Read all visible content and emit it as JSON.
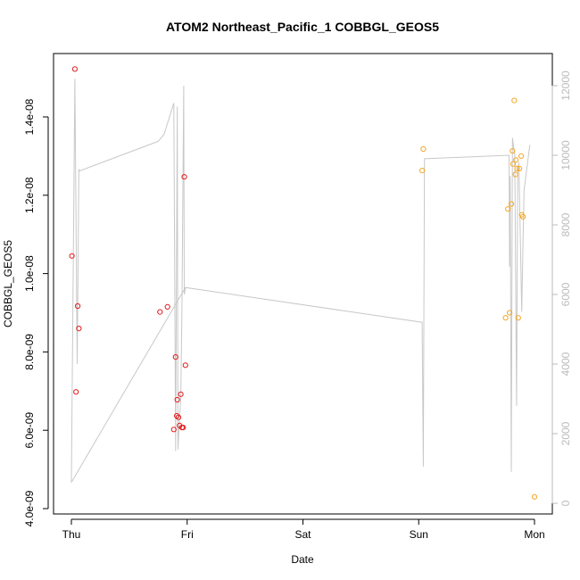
{
  "chart_data": {
    "type": "scatter",
    "title": "ATOM2 Northeast_Pacific_1 COBBGL_GEOS5",
    "xlabel": "Date",
    "ylabel": "COBBGL_GEOS5",
    "x_ticks": [
      "Thu",
      "Fri",
      "Sat",
      "Sun",
      "Mon"
    ],
    "xlim": [
      0,
      4
    ],
    "ylim": [
      4e-09,
      1.56e-08
    ],
    "y_ticks": [
      "4.0e-09",
      "6.0e-09",
      "8.0e-09",
      "1.0e-08",
      "1.2e-08",
      "1.4e-08"
    ],
    "y2lim": [
      0,
      12000
    ],
    "y2_ticks": [
      "0",
      "2000",
      "4000",
      "6000",
      "8000",
      "10000",
      "12000"
    ],
    "colors": {
      "series_red": "#e41a1c",
      "series_orange": "#f5a623",
      "line": "#c8c8c8",
      "axis": "#000000",
      "right_axis": "#bbbbbb"
    },
    "series": [
      {
        "color": "red",
        "points": [
          [
            0.005,
            1.045e-08
          ],
          [
            0.03,
            1.522e-08
          ],
          [
            0.04,
            6.98e-09
          ],
          [
            0.055,
            9.17e-09
          ],
          [
            0.065,
            8.6e-09
          ],
          [
            0.765,
            9.02e-09
          ],
          [
            0.83,
            9.15e-09
          ],
          [
            0.885,
            6.02e-09
          ],
          [
            0.9,
            7.87e-09
          ],
          [
            0.91,
            6.37e-09
          ],
          [
            0.915,
            6.78e-09
          ],
          [
            0.925,
            6.33e-09
          ],
          [
            0.935,
            6.12e-09
          ],
          [
            0.945,
            6.92e-09
          ],
          [
            0.955,
            6.07e-09
          ],
          [
            0.965,
            6.07e-09
          ],
          [
            0.975,
            1.247e-08
          ],
          [
            0.985,
            7.66e-09
          ]
        ]
      },
      {
        "color": "orange",
        "points": [
          [
            3.03,
            1.263e-08
          ],
          [
            3.04,
            1.318e-08
          ],
          [
            3.75,
            8.87e-09
          ],
          [
            3.77,
            1.165e-08
          ],
          [
            3.785,
            9e-09
          ],
          [
            3.8,
            1.178e-08
          ],
          [
            3.81,
            1.313e-08
          ],
          [
            3.815,
            1.28e-08
          ],
          [
            3.825,
            1.442e-08
          ],
          [
            3.835,
            1.253e-08
          ],
          [
            3.84,
            1.29e-08
          ],
          [
            3.85,
            1.268e-08
          ],
          [
            3.86,
            8.87e-09
          ],
          [
            3.87,
            1.268e-08
          ],
          [
            3.885,
            1.3e-08
          ],
          [
            3.89,
            1.15e-08
          ],
          [
            3.9,
            1.145e-08
          ],
          [
            4.0,
            4.3e-09
          ]
        ]
      }
    ],
    "line_series": {
      "axis": "right",
      "points": [
        [
          0.0,
          600
        ],
        [
          0.03,
          12200
        ],
        [
          0.05,
          4000
        ],
        [
          0.065,
          9600
        ],
        [
          0.07,
          9550
        ],
        [
          0.75,
          10400
        ],
        [
          0.8,
          10600
        ],
        [
          0.885,
          11500
        ],
        [
          0.9,
          1500
        ],
        [
          0.915,
          11400
        ],
        [
          0.92,
          1550
        ],
        [
          0.935,
          2500
        ],
        [
          0.945,
          3000
        ],
        [
          0.955,
          5600
        ],
        [
          0.97,
          12000
        ],
        [
          0.975,
          6000
        ],
        [
          0.985,
          6200
        ],
        [
          0.0,
          600
        ],
        [
          0.0,
          600
        ],
        [
          0.985,
          6200
        ],
        [
          3.03,
          5200
        ],
        [
          3.04,
          1050
        ],
        [
          3.05,
          9900
        ],
        [
          3.78,
          10000
        ],
        [
          3.785,
          6800
        ],
        [
          3.79,
          9400
        ],
        [
          3.8,
          900
        ],
        [
          3.81,
          10500
        ],
        [
          3.83,
          10000
        ],
        [
          3.845,
          2800
        ],
        [
          3.855,
          9500
        ],
        [
          3.865,
          9800
        ],
        [
          3.89,
          5500
        ],
        [
          3.9,
          7300
        ],
        [
          3.91,
          9000
        ],
        [
          3.96,
          10300
        ]
      ]
    }
  }
}
